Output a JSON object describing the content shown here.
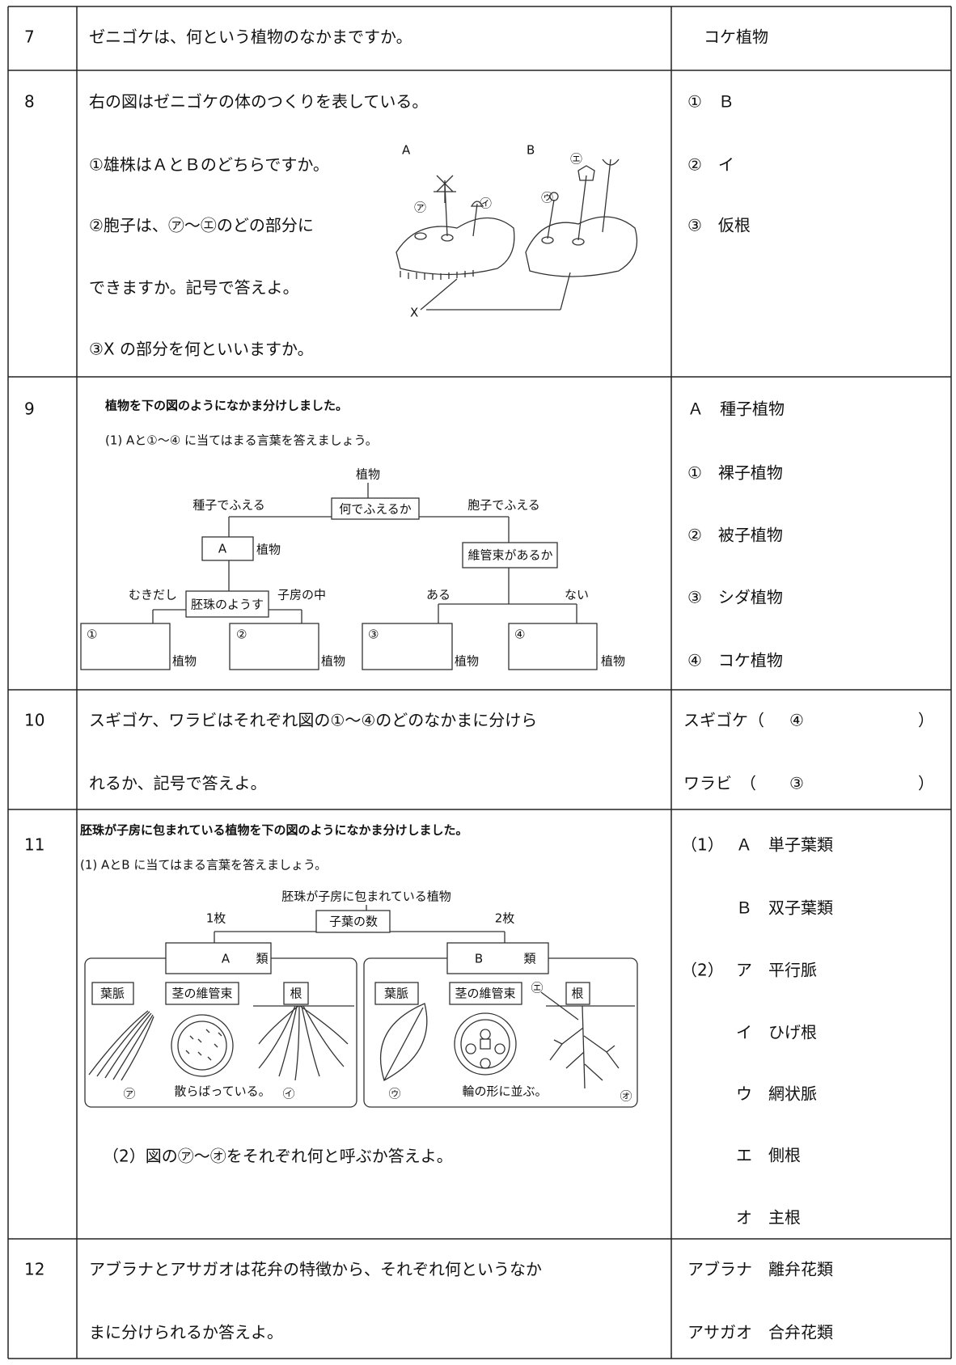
{
  "rows": [
    {
      "number": "7",
      "question": [
        "ゼニゴケは、何という植物のなかまですか。"
      ],
      "answer": [
        "コケ植物"
      ]
    },
    {
      "number": "8",
      "question": [
        "右の図はゼニゴケの体のつくりを表している。",
        "①雄株はＡとＢのどちらですか。",
        "②胞子は、㋐～㋓のどの部分に",
        "できますか。記号で答えよ。",
        "③X の部分を何といいますか。"
      ],
      "figure": [
        "A",
        "B",
        "X",
        "㋐",
        "㋑",
        "㋒",
        "㋓"
      ],
      "answer": [
        "①　Ｂ",
        "②　イ",
        "③　仮根"
      ]
    },
    {
      "number": "9",
      "question": [
        "植物を下の図のようになかま分けしました。",
        "(1) Aと①～④ に当てはまる言葉を答えましょう。"
      ],
      "figure": [
        "植物",
        "種子でふえる",
        "何でふえるか",
        "胞子でふえる",
        "A",
        "植物",
        "維管束があるか",
        "むきだし",
        "胚珠のようす",
        "子房の中",
        "ある",
        "ない",
        "①",
        "植物",
        "②",
        "植物",
        "③",
        "植物",
        "④",
        "植物"
      ],
      "answer": [
        "Ａ　種子植物",
        "①　裸子植物",
        "②　被子植物",
        "③　シダ植物",
        "④　コケ植物"
      ]
    },
    {
      "number": "10",
      "question": [
        "スギゴケ、ワラビはそれぞれ図の①～④のどのなかまに分けら",
        "れるか、記号で答えよ。"
      ],
      "answer": [
        [
          "スギゴケ（",
          "④",
          "）"
        ],
        [
          "ワラビ　（",
          "③",
          "）"
        ]
      ]
    },
    {
      "number": "11",
      "question": [
        "胚珠が子房に包まれている植物を下の図のようになかま分けしました。",
        "(1) AとB に当てはまる言葉を答えましょう。"
      ],
      "figure": [
        "胚珠が子房に包まれている植物",
        "1枚",
        "子葉の数",
        "2枚",
        "A",
        "類",
        "B",
        "類",
        "葉脈",
        "茎の維管束",
        "根",
        "葉脈",
        "茎の維管束",
        "根",
        "㋐",
        "散らばっている。",
        "㋑",
        "㋒",
        "輪の形に並ぶ。",
        "㋓",
        "㋔"
      ],
      "question2": "（2）図の㋐～㋔をそれぞれ何と呼ぶか答えよ。",
      "answer": [
        {
          "prefix": "（1）",
          "text": "Ａ　単子葉類"
        },
        {
          "text": "Ｂ　双子葉類"
        },
        {
          "prefix": "（2）",
          "text": "ア　平行脈"
        },
        {
          "text": "イ　ひげ根"
        },
        {
          "text": "ウ　網状脈"
        },
        {
          "text": "エ　側根"
        },
        {
          "text": "オ　主根"
        }
      ]
    },
    {
      "number": "12",
      "question": [
        "アブラナとアサガオは花弁の特徴から、それぞれ何というなか",
        "まに分けられるか答えよ。"
      ],
      "answer": [
        "アブラナ　離弁花類",
        "アサガオ　合弁花類"
      ]
    }
  ]
}
